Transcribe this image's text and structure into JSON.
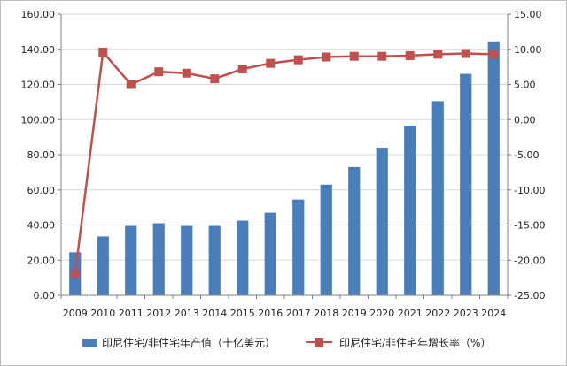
{
  "chart_data": {
    "type": "bar+line",
    "categories": [
      "2009",
      "2010",
      "2011",
      "2012",
      "2013",
      "2014",
      "2015",
      "2016",
      "2017",
      "2018",
      "2019",
      "2020",
      "2021",
      "2022",
      "2023",
      "2024"
    ],
    "series": [
      {
        "name": "印尼住宅/非住宅年产值（十亿美元）",
        "type": "bar",
        "axis": "left",
        "color": "#4a7ebb",
        "values": [
          24.5,
          33.5,
          39.5,
          41.0,
          39.5,
          39.5,
          42.5,
          47.0,
          54.5,
          63.0,
          73.0,
          84.0,
          96.5,
          110.5,
          126.0,
          144.5
        ]
      },
      {
        "name": "印尼住宅/非住宅年增长率（%）",
        "type": "line",
        "axis": "right",
        "color": "#c0504d",
        "values": [
          -22.0,
          9.6,
          5.0,
          6.8,
          6.6,
          5.8,
          7.2,
          8.0,
          8.5,
          8.9,
          9.0,
          9.0,
          9.1,
          9.3,
          9.4,
          9.3
        ]
      }
    ],
    "y_left": {
      "ylim": [
        0,
        160
      ],
      "ticks": [
        "0.00",
        "20.00",
        "40.00",
        "60.00",
        "80.00",
        "100.00",
        "120.00",
        "140.00",
        "160.00"
      ]
    },
    "y_right": {
      "ylim": [
        -25,
        15
      ],
      "ticks": [
        "-25.00",
        "-20.00",
        "-15.00",
        "-10.00",
        "-5.00",
        "0.00",
        "5.00",
        "10.00",
        "15.00"
      ]
    },
    "grid": true,
    "legend_position": "bottom"
  }
}
